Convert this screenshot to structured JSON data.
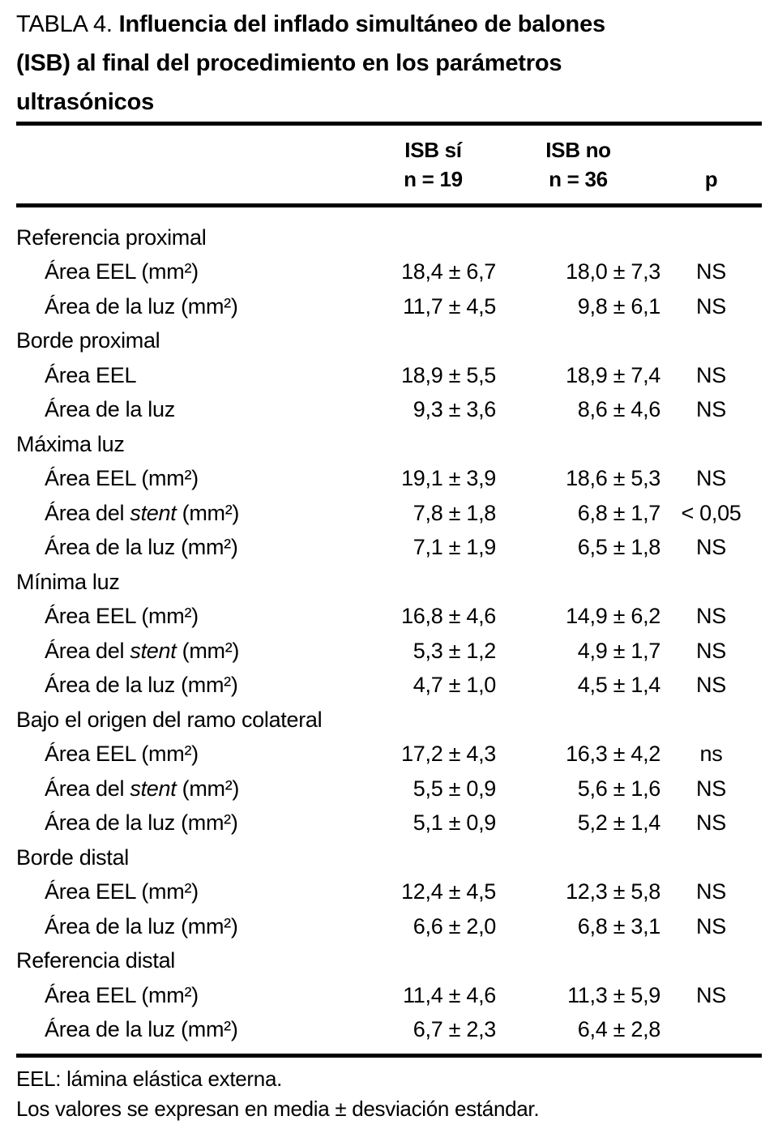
{
  "title": {
    "label": "TABLA 4.",
    "line1_bold": "Influencia del inflado simultáneo de balones",
    "line2": "(ISB) al final del procedimiento en los parámetros",
    "line3": "ultrasónicos"
  },
  "table": {
    "columns": [
      {
        "line1": "ISB sí",
        "line2": "n = 19"
      },
      {
        "line1": "ISB no",
        "line2": "n = 36"
      },
      {
        "line1": "p"
      }
    ],
    "rows": [
      {
        "type": "section",
        "label": "Referencia proximal",
        "v1": "",
        "v2": "",
        "p": ""
      },
      {
        "type": "data",
        "label": "Área EEL (mm²)",
        "v1": "18,4 ± 6,7",
        "v2": "18,0 ± 7,3",
        "p": "NS"
      },
      {
        "type": "data",
        "label": "Área de la luz (mm²)",
        "v1": "11,7 ± 4,5",
        "v2": "9,8 ± 6,1",
        "p": "NS"
      },
      {
        "type": "section",
        "label": "Borde proximal",
        "v1": "",
        "v2": "",
        "p": ""
      },
      {
        "type": "data",
        "label": "Área EEL",
        "v1": "18,9 ± 5,5",
        "v2": "18,9 ± 7,4",
        "p": "NS"
      },
      {
        "type": "data",
        "label": "Área de la luz",
        "v1": "9,3 ± 3,6",
        "v2": "8,6 ± 4,6",
        "p": "NS"
      },
      {
        "type": "section",
        "label": "Máxima luz",
        "v1": "",
        "v2": "",
        "p": ""
      },
      {
        "type": "data",
        "label": "Área EEL (mm²)",
        "v1": "19,1 ± 3,9",
        "v2": "18,6 ± 5,3",
        "p": "NS"
      },
      {
        "type": "data",
        "label": "Área del *stent* (mm²)",
        "v1": "7,8 ± 1,8",
        "v2": "6,8 ± 1,7",
        "p": "< 0,05"
      },
      {
        "type": "data",
        "label": "Área de la luz (mm²)",
        "v1": "7,1 ± 1,9",
        "v2": "6,5 ± 1,8",
        "p": "NS"
      },
      {
        "type": "section",
        "label": "Mínima luz",
        "v1": "",
        "v2": "",
        "p": ""
      },
      {
        "type": "data",
        "label": "Área EEL (mm²)",
        "v1": "16,8 ± 4,6",
        "v2": "14,9 ± 6,2",
        "p": "NS"
      },
      {
        "type": "data",
        "label": "Área del *stent* (mm²)",
        "v1": "5,3 ± 1,2",
        "v2": "4,9 ± 1,7",
        "p": "NS"
      },
      {
        "type": "data",
        "label": "Área de la luz (mm²)",
        "v1": "4,7 ± 1,0",
        "v2": "4,5 ± 1,4",
        "p": "NS"
      },
      {
        "type": "section",
        "label": "Bajo el origen del ramo colateral",
        "v1": "",
        "v2": "",
        "p": ""
      },
      {
        "type": "data",
        "label": "Área EEL (mm²)",
        "v1": "17,2 ± 4,3",
        "v2": "16,3 ± 4,2",
        "p": "ns"
      },
      {
        "type": "data",
        "label": "Área del *stent* (mm²)",
        "v1": "5,5 ± 0,9",
        "v2": "5,6 ± 1,6",
        "p": "NS"
      },
      {
        "type": "data",
        "label": "Área de la luz (mm²)",
        "v1": "5,1 ± 0,9",
        "v2": "5,2 ± 1,4",
        "p": "NS"
      },
      {
        "type": "section",
        "label": "Borde distal",
        "v1": "",
        "v2": "",
        "p": ""
      },
      {
        "type": "data",
        "label": "Área EEL (mm²)",
        "v1": "12,4 ± 4,5",
        "v2": "12,3 ± 5,8",
        "p": "NS"
      },
      {
        "type": "data",
        "label": "Área de la luz (mm²)",
        "v1": "6,6 ± 2,0",
        "v2": "6,8 ± 3,1",
        "p": "NS"
      },
      {
        "type": "section",
        "label": "Referencia distal",
        "v1": "",
        "v2": "",
        "p": ""
      },
      {
        "type": "data",
        "label": "Área EEL (mm²)",
        "v1": "11,4 ± 4,6",
        "v2": "11,3 ± 5,9",
        "p": "NS"
      },
      {
        "type": "data",
        "label": "Área de la luz (mm²)",
        "v1": "6,7 ± 2,3",
        "v2": "6,4 ± 2,8",
        "p": ""
      }
    ]
  },
  "footnotes": [
    "EEL: lámina elástica externa.",
    "Los valores se expresan en media ± desviación estándar."
  ]
}
